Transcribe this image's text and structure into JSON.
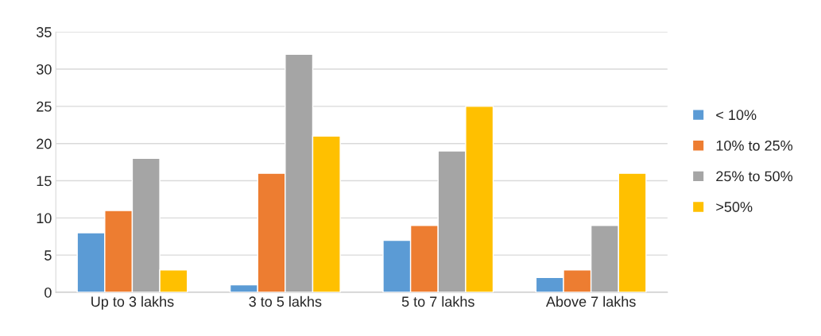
{
  "chart_data": {
    "type": "bar",
    "categories": [
      "Up to 3 lakhs",
      "3 to 5 lakhs",
      "5 to 7 lakhs",
      "Above 7 lakhs"
    ],
    "series": [
      {
        "name": "< 10%",
        "color": "#5b9bd5",
        "values": [
          8,
          1,
          7,
          2
        ]
      },
      {
        "name": "10% to 25%",
        "color": "#ed7d31",
        "values": [
          11,
          16,
          9,
          3
        ]
      },
      {
        "name": "25% to 50%",
        "color": "#a5a5a5",
        "values": [
          18,
          32,
          19,
          9
        ]
      },
      {
        "name": ">50%",
        "color": "#ffc000",
        "values": [
          3,
          21,
          25,
          16
        ]
      }
    ],
    "ylim": [
      0,
      35
    ],
    "yticks": [
      0,
      5,
      10,
      15,
      20,
      25,
      30,
      35
    ],
    "grid": "y",
    "legend": "right"
  }
}
